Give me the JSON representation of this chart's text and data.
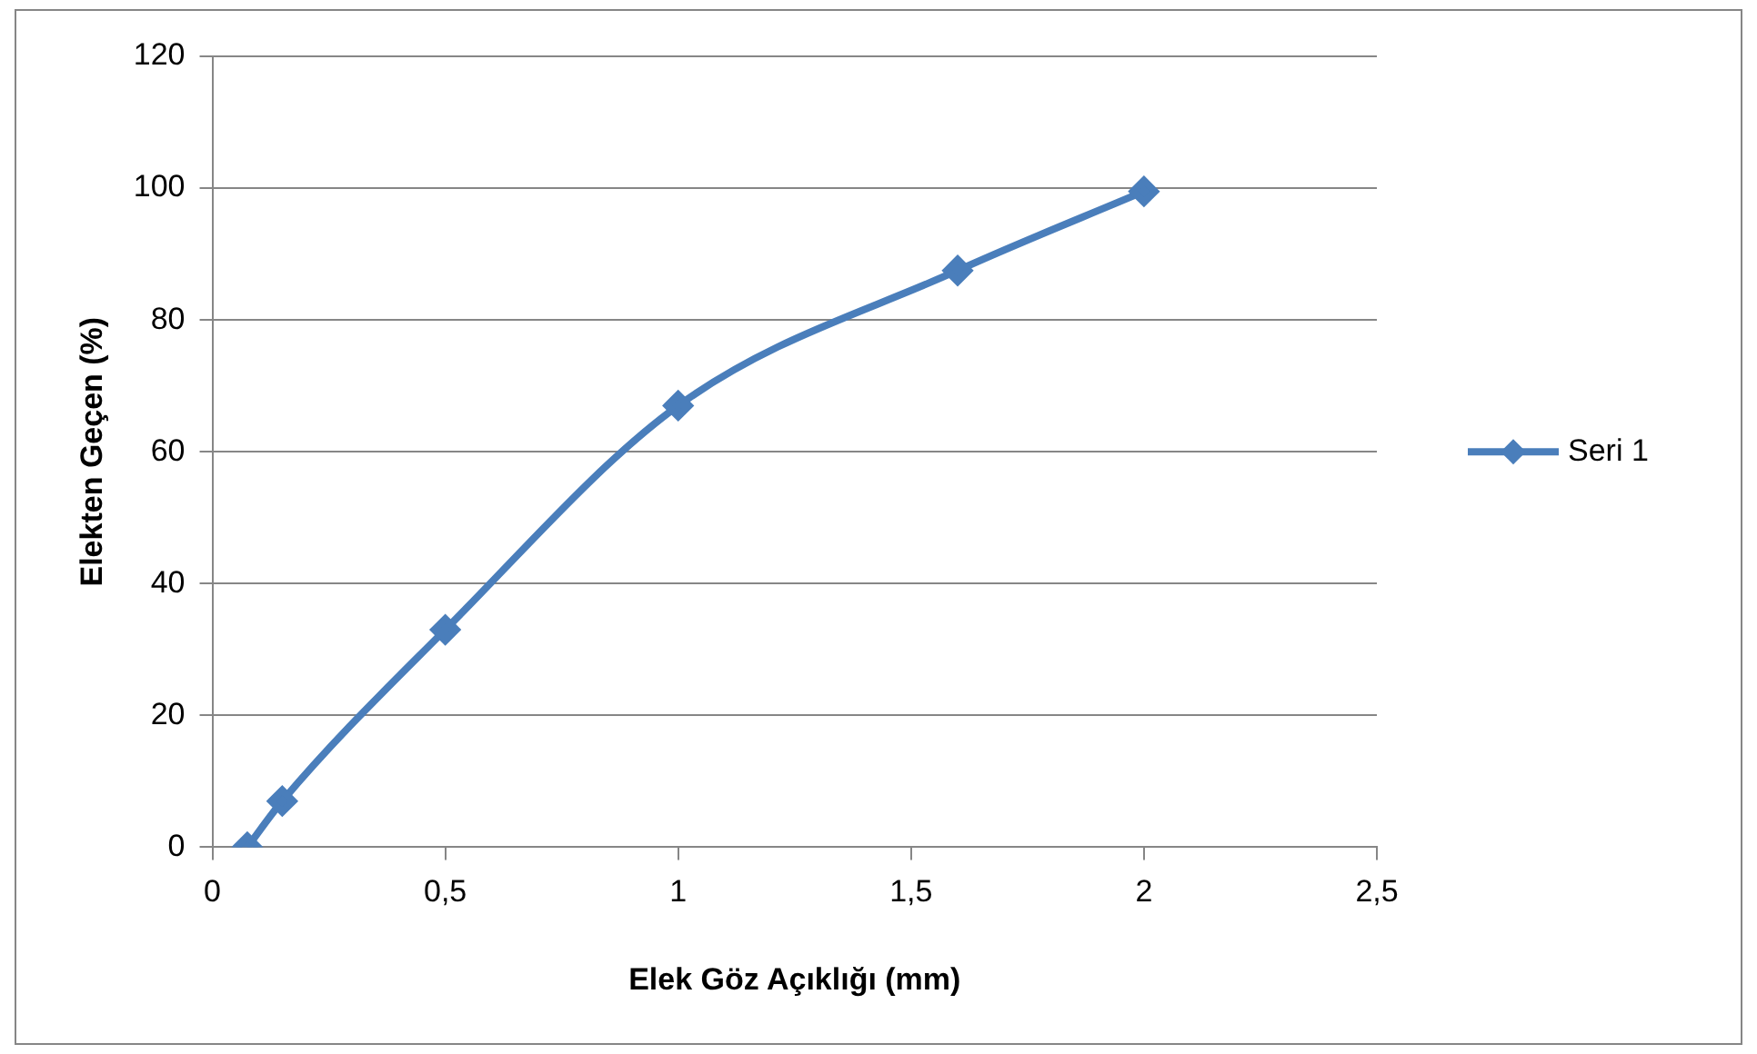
{
  "chart_data": {
    "type": "line",
    "xlabel": "Elek Göz Açıklığı (mm)",
    "ylabel": "Elekten Geçen (%)",
    "x": [
      0.075,
      0.15,
      0.5,
      1,
      1.6,
      2
    ],
    "series": [
      {
        "name": "Seri 1",
        "color": "#4a7ebb",
        "values": [
          0,
          7,
          33,
          67,
          87.5,
          99.5
        ]
      }
    ],
    "xlim": [
      0,
      2.5
    ],
    "xticks": [
      0,
      {
        "value": 0.5,
        "label": "0,5"
      },
      1,
      {
        "value": 1.5,
        "label": "1,5"
      },
      2,
      {
        "value": 2.5,
        "label": "2,5"
      }
    ],
    "ylim": [
      0,
      120
    ],
    "yticks": [
      0,
      20,
      40,
      60,
      80,
      100,
      120
    ],
    "grid": "y",
    "legend": "right",
    "marker": "diamond",
    "line_style": "solid"
  }
}
